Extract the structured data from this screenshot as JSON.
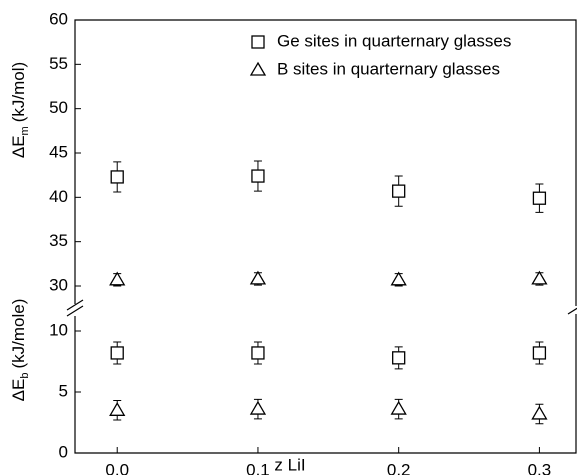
{
  "chart_data": {
    "type": "scatter",
    "x_label": "z LiI",
    "y_label_upper": {
      "symbol": "ΔE",
      "subscript": "m",
      "unit": "(kJ/mol)"
    },
    "y_label_lower": {
      "symbol": "ΔE",
      "subscript": "b",
      "unit": "(kJ/mole)"
    },
    "x": [
      0,
      0.1,
      0.2,
      0.3
    ],
    "xlim": [
      -0.03,
      0.326
    ],
    "xticks": [
      {
        "value": 0,
        "label": "0.0"
      },
      0.1,
      0.2,
      0.3
    ],
    "ylim": [
      0,
      60
    ],
    "y_break": [
      10,
      30
    ],
    "yticks": [
      0,
      5,
      10,
      30,
      35,
      40,
      45,
      50,
      55,
      60
    ],
    "series": [
      {
        "name": "Ge sites in quarternary glasses",
        "marker": "square",
        "color": "#000000",
        "values_m": [
          42.3,
          42.4,
          40.7,
          39.9
        ],
        "errors_m": [
          1.7,
          1.7,
          1.7,
          1.6
        ],
        "values_b": [
          8.2,
          8.2,
          7.8,
          8.2
        ],
        "errors_b": [
          0.9,
          0.9,
          0.9,
          0.9
        ]
      },
      {
        "name": "B sites in quarternary glasses",
        "marker": "triangle",
        "color": "#000000",
        "values_m": [
          30.7,
          30.8,
          30.7,
          30.8
        ],
        "errors_m": [
          0.7,
          0.7,
          0.7,
          0.7
        ],
        "values_b": [
          3.5,
          3.6,
          3.6,
          3.2
        ],
        "errors_b": [
          0.8,
          0.8,
          0.8,
          0.8
        ]
      }
    ]
  }
}
